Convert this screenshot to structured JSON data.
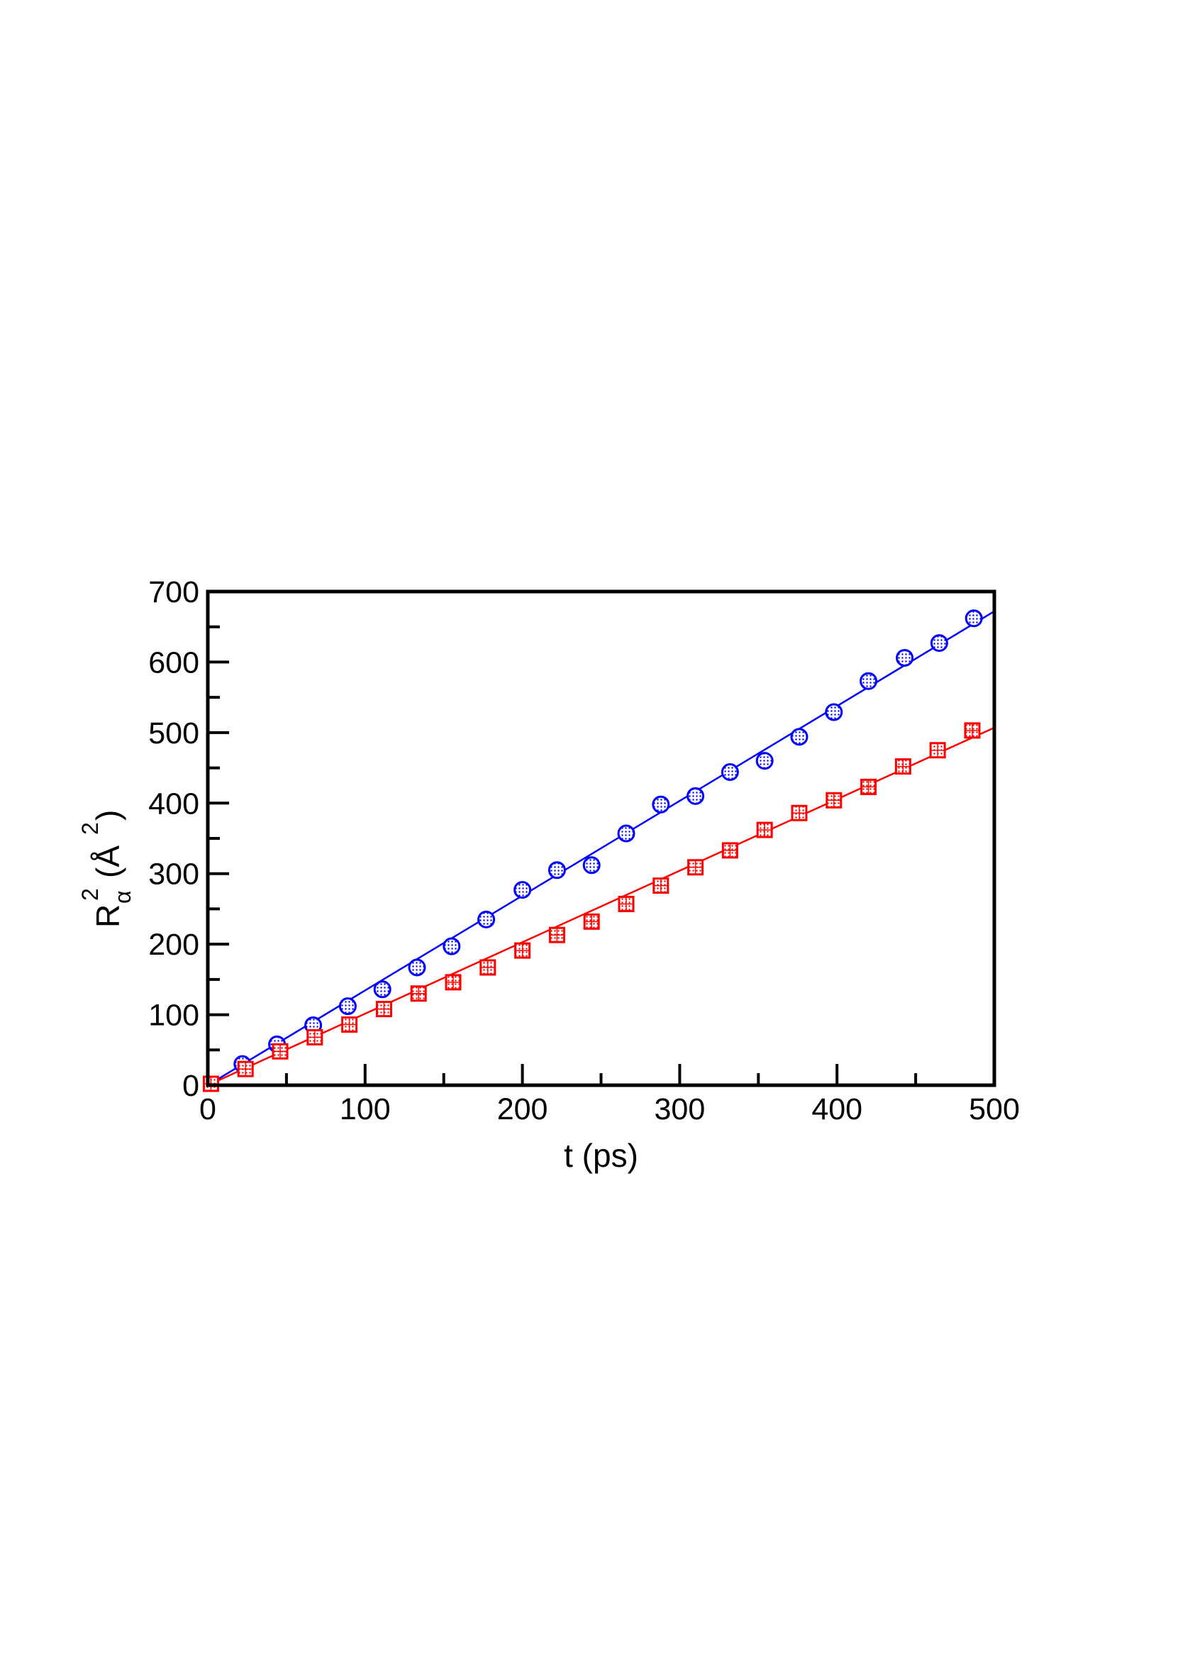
{
  "chart_data": {
    "type": "scatter",
    "xlabel": "t (ps)",
    "ylabel": {
      "base": "R",
      "sup": "2",
      "sub": "α",
      "unit_open": "(Å",
      "unit_sup": "2",
      "unit_close": ")"
    },
    "xlim": [
      0,
      500
    ],
    "ylim": [
      0,
      700
    ],
    "x_ticks": [
      0,
      100,
      200,
      300,
      400,
      500
    ],
    "x_tick_labels": [
      "0",
      "100",
      "200",
      "300",
      "400",
      "500"
    ],
    "y_ticks": [
      0,
      100,
      200,
      300,
      400,
      500,
      600,
      700
    ],
    "y_tick_labels": [
      "0",
      "100",
      "200",
      "300",
      "400",
      "500",
      "600",
      "700"
    ],
    "x_minor_step": 50,
    "y_minor_step": 50,
    "grid": false,
    "series": [
      {
        "marker": "circle",
        "color": "#0000ff",
        "x": [
          22,
          44,
          67,
          89,
          111,
          133,
          155,
          177,
          200,
          222,
          244,
          266,
          288,
          310,
          332,
          354,
          376,
          398,
          420,
          443,
          465,
          487
        ],
        "y": [
          30,
          58,
          85,
          112,
          136,
          167,
          197,
          235,
          277,
          305,
          312,
          357,
          398,
          410,
          444,
          460,
          494,
          529,
          573,
          606,
          627,
          662
        ],
        "fit": {
          "x": [
            0,
            500
          ],
          "y": [
            0,
            672
          ]
        }
      },
      {
        "marker": "square",
        "color": "#ff0000",
        "x": [
          2,
          24,
          46,
          68,
          90,
          112,
          134,
          156,
          178,
          200,
          222,
          244,
          266,
          288,
          310,
          332,
          354,
          376,
          398,
          420,
          442,
          464,
          486
        ],
        "y": [
          2,
          23,
          48,
          68,
          86,
          108,
          130,
          146,
          167,
          191,
          213,
          232,
          257,
          283,
          309,
          333,
          362,
          386,
          404,
          423,
          452,
          475,
          503
        ],
        "fit": {
          "x": [
            0,
            500
          ],
          "y": [
            0,
            507
          ]
        }
      }
    ]
  }
}
